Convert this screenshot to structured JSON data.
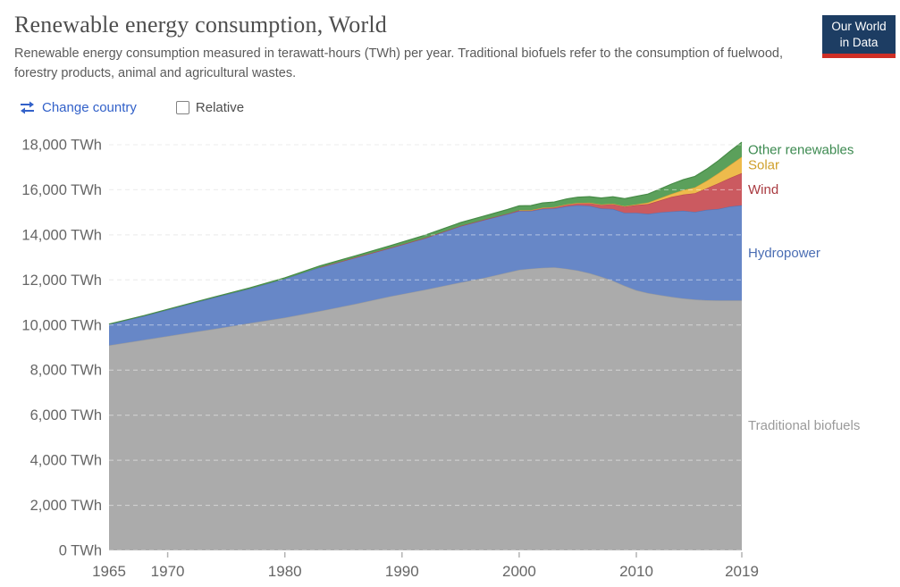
{
  "header": {
    "title": "Renewable energy consumption, World",
    "subtitle": "Renewable energy consumption measured in terawatt-hours (TWh) per year. Traditional biofuels refer to the consumption of fuelwood, forestry products, animal and agricultural wastes.",
    "logo": {
      "line1": "Our World",
      "line2": "in Data",
      "bg_color": "#1d3d63",
      "bar_color": "#cf2f26"
    }
  },
  "controls": {
    "change_country_label": "Change country",
    "change_country_color": "#3261c9",
    "relative_label": "Relative",
    "relative_checked": false
  },
  "chart_data": {
    "type": "area",
    "stacked": true,
    "title": "Renewable energy consumption, World",
    "xlabel": "",
    "ylabel": "TWh",
    "ylabel_suffix": " TWh",
    "xlim": [
      1965,
      2019
    ],
    "ylim": [
      0,
      18000
    ],
    "grid": true,
    "legend_position": "right-edge-labels",
    "yticks": [
      0,
      2000,
      4000,
      6000,
      8000,
      10000,
      12000,
      14000,
      16000,
      18000
    ],
    "xticks": [
      1965,
      1970,
      1980,
      1990,
      2000,
      2010,
      2019
    ],
    "tick_mark_years": [
      1970,
      1980,
      1990,
      2000,
      2010,
      2019
    ],
    "x": [
      1965,
      1968,
      1971,
      1974,
      1977,
      1980,
      1983,
      1986,
      1989,
      1992,
      1995,
      1997,
      1999,
      2000,
      2001,
      2002,
      2003,
      2004,
      2005,
      2006,
      2007,
      2008,
      2009,
      2010,
      2011,
      2012,
      2013,
      2014,
      2015,
      2016,
      2017,
      2018,
      2019
    ],
    "series": [
      {
        "name": "Traditional biofuels",
        "color": "#ababab",
        "stroke": "#9c9c9c",
        "label_color": "#9a9a9a",
        "values": [
          9100,
          9340,
          9590,
          9830,
          10080,
          10330,
          10620,
          10930,
          11270,
          11570,
          11890,
          12090,
          12330,
          12450,
          12500,
          12540,
          12560,
          12500,
          12420,
          12300,
          12140,
          11960,
          11740,
          11540,
          11420,
          11330,
          11250,
          11180,
          11130,
          11100,
          11090,
          11090,
          11090
        ]
      },
      {
        "name": "Hydropower",
        "color": "#6787c7",
        "stroke": "#5574b4",
        "label_color": "#4a6db3",
        "values": [
          930,
          1060,
          1220,
          1390,
          1530,
          1720,
          1940,
          2060,
          2150,
          2290,
          2500,
          2570,
          2590,
          2610,
          2560,
          2610,
          2610,
          2760,
          2890,
          2990,
          3030,
          3190,
          3240,
          3440,
          3510,
          3670,
          3790,
          3890,
          3890,
          4010,
          4060,
          4170,
          4220
        ]
      },
      {
        "name": "Wind",
        "color": "#cb5a60",
        "stroke": "#b8474e",
        "label_color": "#a93a40",
        "values": [
          0,
          0,
          0,
          0,
          0,
          0,
          0.3,
          1,
          3,
          5,
          8,
          12,
          21,
          31,
          38,
          52,
          63,
          85,
          104,
          133,
          171,
          221,
          276,
          342,
          437,
          526,
          646,
          717,
          831,
          960,
          1140,
          1270,
          1430
        ]
      },
      {
        "name": "Solar",
        "color": "#eebb4c",
        "stroke": "#dba43a",
        "label_color": "#cf9f2a",
        "values": [
          0,
          0,
          0,
          0,
          0,
          0,
          0,
          0,
          0,
          0,
          0,
          0,
          0,
          1,
          1,
          2,
          2,
          3,
          4,
          5,
          7,
          12,
          21,
          34,
          65,
          100,
          135,
          197,
          256,
          328,
          445,
          574,
          724
        ]
      },
      {
        "name": "Other renewables",
        "color": "#5ba05b",
        "stroke": "#478b47",
        "label_color": "#3c8a50",
        "values": [
          14,
          18,
          24,
          30,
          38,
          48,
          62,
          78,
          100,
          125,
          150,
          165,
          185,
          195,
          200,
          215,
          225,
          240,
          255,
          270,
          290,
          310,
          330,
          355,
          380,
          405,
          435,
          465,
          490,
          520,
          560,
          610,
          650
        ]
      }
    ]
  }
}
